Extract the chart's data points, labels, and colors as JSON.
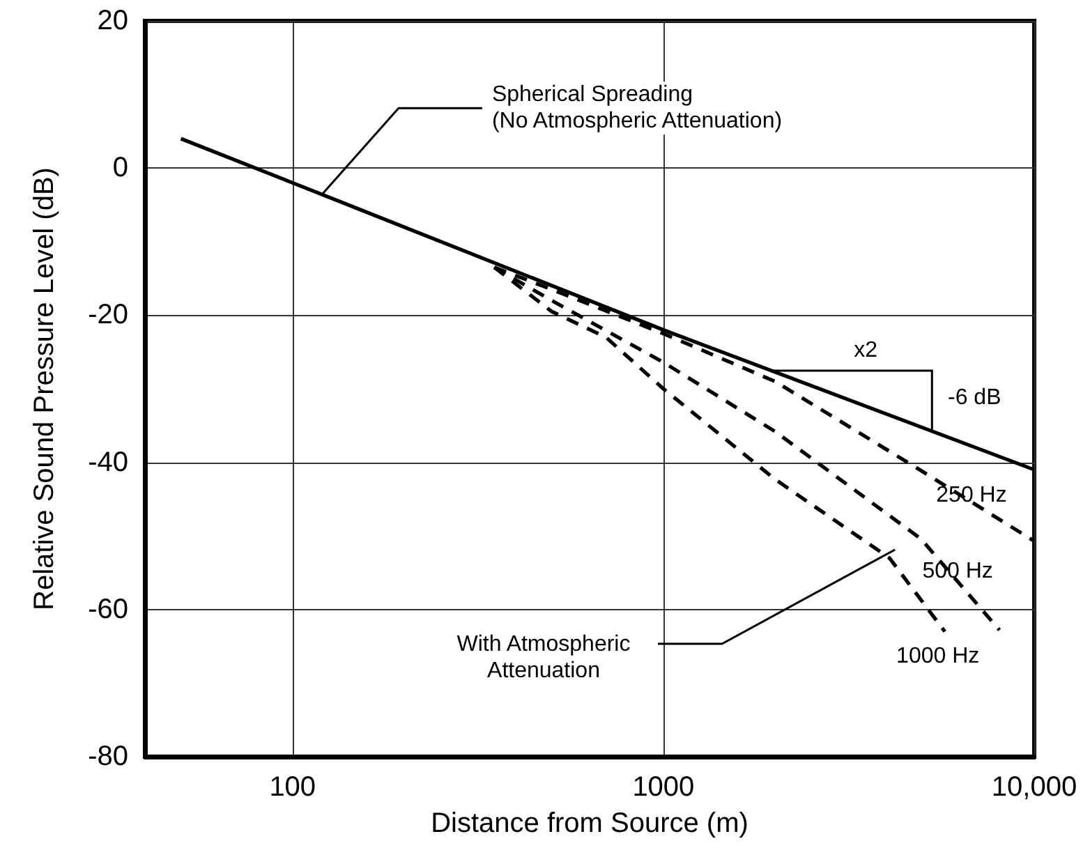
{
  "chart_data": {
    "type": "line",
    "xlabel": "Distance from Source (m)",
    "ylabel": "Relative Sound Pressure Level (dB)",
    "xlim": [
      40,
      10000
    ],
    "xticks": [
      100,
      1000,
      {
        "value": 10000,
        "label": "10,000"
      }
    ],
    "ylim": [
      -80,
      20
    ],
    "yticks": [
      -80,
      -60,
      -40,
      -20,
      0,
      20
    ],
    "log": "x",
    "grid": true,
    "series": [
      {
        "color": "#000000",
        "line_style": "solid",
        "x": [
          50,
          100,
          1000,
          10000
        ],
        "values": [
          4,
          -2,
          -22,
          -41
        ]
      },
      {
        "name": "250 Hz",
        "color": "#000000",
        "line_style": "dashed",
        "x": [
          350,
          500,
          1000,
          2000,
          4800,
          10000
        ],
        "values": [
          -13.5,
          -16.5,
          -22.5,
          -29,
          -40.7,
          -50.7
        ]
      },
      {
        "name": "500 Hz",
        "color": "#000000",
        "line_style": "dashed",
        "x": [
          350,
          500,
          1000,
          2000,
          4950,
          8060
        ],
        "values": [
          -13.5,
          -18,
          -26.4,
          -35.8,
          -50.4,
          -62.8
        ]
      },
      {
        "name": "1000 Hz",
        "color": "#000000",
        "line_style": "dashed",
        "x": [
          350,
          500,
          700,
          1000,
          2000,
          4070,
          5740
        ],
        "values": [
          -13.5,
          -19.5,
          -23,
          -30,
          -42.3,
          -53,
          -63
        ]
      }
    ],
    "annotations": [
      {
        "text": "Spherical Spreading\n(No Atmospheric Attenuation)",
        "x": 120,
        "y": -3.6
      },
      {
        "text": "With Atmospheric\nAttenuation",
        "x": 4070,
        "y": -53
      },
      "x2",
      {
        "text": "-6 dB",
        "x": 5300,
        "y": -35.6
      }
    ]
  }
}
